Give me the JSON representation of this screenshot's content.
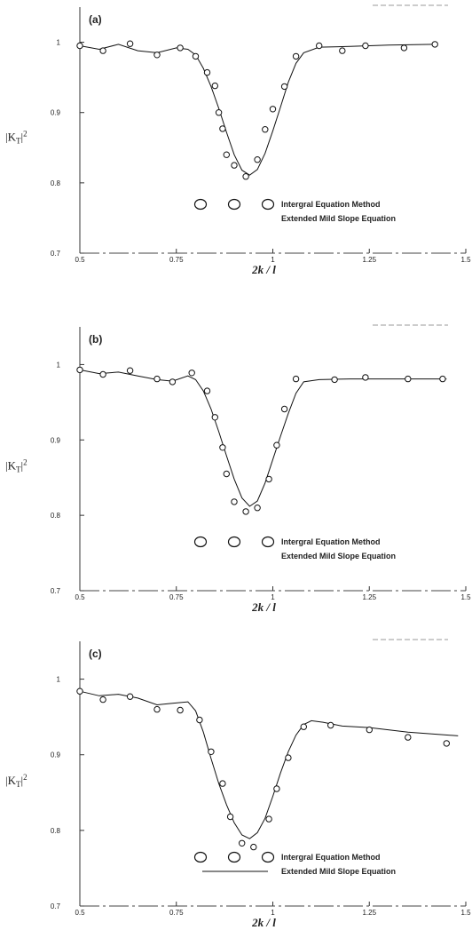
{
  "chart_data": [
    {
      "type": "line",
      "panel_label": "(a)",
      "xlabel": "2k / l",
      "ylabel": "|K",
      "ylabel_sub": "T",
      "ylabel_sup": "2",
      "xlim": [
        0.5,
        1.5
      ],
      "ylim": [
        0.7,
        1.05
      ],
      "xticks": [
        {
          "v": 0.5,
          "t": "0.5"
        },
        {
          "v": 0.75,
          "t": "0.75"
        },
        {
          "v": 1,
          "t": "1"
        },
        {
          "v": 1.25,
          "t": "1.25"
        },
        {
          "v": 1.5,
          "t": "1.5"
        }
      ],
      "yticks": [
        {
          "v": 0.7,
          "t": "0.7"
        },
        {
          "v": 0.8,
          "t": "0.8"
        },
        {
          "v": 0.9,
          "t": "0.9"
        },
        {
          "v": 1,
          "t": "1"
        }
      ],
      "legend": {
        "markers": "O O O",
        "series": [
          "Intergral Equation Method",
          "Extended Mild Slope Equation"
        ]
      },
      "series": [
        {
          "name": "Intergral Equation Method",
          "style": "circles",
          "x": [
            0.5,
            0.56,
            0.63,
            0.7,
            0.76,
            0.8,
            0.83,
            0.85,
            0.86,
            0.87,
            0.88,
            0.9,
            0.93,
            0.96,
            0.98,
            1.0,
            1.03,
            1.06,
            1.12,
            1.18,
            1.24,
            1.34,
            1.42
          ],
          "y": [
            0.995,
            0.988,
            0.998,
            0.982,
            0.992,
            0.98,
            0.957,
            0.938,
            0.9,
            0.877,
            0.84,
            0.825,
            0.809,
            0.833,
            0.876,
            0.905,
            0.937,
            0.98,
            0.995,
            0.988,
            0.995,
            0.992,
            0.997
          ]
        },
        {
          "name": "Extended Mild Slope Equation",
          "style": "line",
          "x": [
            0.5,
            0.55,
            0.6,
            0.65,
            0.7,
            0.75,
            0.78,
            0.8,
            0.82,
            0.84,
            0.86,
            0.88,
            0.9,
            0.92,
            0.94,
            0.96,
            0.98,
            1.0,
            1.02,
            1.04,
            1.06,
            1.08,
            1.12,
            1.2,
            1.3,
            1.42
          ],
          "y": [
            0.995,
            0.99,
            0.997,
            0.988,
            0.985,
            0.992,
            0.99,
            0.982,
            0.963,
            0.937,
            0.906,
            0.872,
            0.84,
            0.818,
            0.811,
            0.819,
            0.842,
            0.874,
            0.908,
            0.943,
            0.97,
            0.985,
            0.993,
            0.994,
            0.996,
            0.997
          ]
        }
      ]
    },
    {
      "type": "line",
      "panel_label": "(b)",
      "xlabel": "2k / l",
      "ylabel": "|K",
      "ylabel_sub": "T",
      "ylabel_sup": "2",
      "xlim": [
        0.5,
        1.5
      ],
      "ylim": [
        0.7,
        1.05
      ],
      "xticks": [
        {
          "v": 0.5,
          "t": "0.5"
        },
        {
          "v": 0.75,
          "t": "0.75"
        },
        {
          "v": 1,
          "t": "1"
        },
        {
          "v": 1.25,
          "t": "1.25"
        },
        {
          "v": 1.5,
          "t": "1.5"
        }
      ],
      "yticks": [
        {
          "v": 0.7,
          "t": "0.7"
        },
        {
          "v": 0.8,
          "t": "0.8"
        },
        {
          "v": 0.9,
          "t": "0.9"
        },
        {
          "v": 1,
          "t": "1"
        }
      ],
      "legend": {
        "markers": "O O O",
        "series": [
          "Intergral Equation Method",
          "Extended Mild Slope Equation"
        ]
      },
      "series": [
        {
          "name": "Intergral Equation Method",
          "style": "circles",
          "x": [
            0.5,
            0.56,
            0.63,
            0.7,
            0.74,
            0.79,
            0.83,
            0.85,
            0.87,
            0.88,
            0.9,
            0.93,
            0.96,
            0.99,
            1.01,
            1.03,
            1.06,
            1.16,
            1.24,
            1.35,
            1.44
          ],
          "y": [
            0.993,
            0.987,
            0.992,
            0.981,
            0.977,
            0.989,
            0.965,
            0.93,
            0.89,
            0.855,
            0.818,
            0.805,
            0.81,
            0.848,
            0.893,
            0.941,
            0.981,
            0.98,
            0.983,
            0.981,
            0.981
          ]
        },
        {
          "name": "Extended Mild Slope Equation",
          "style": "line",
          "x": [
            0.5,
            0.55,
            0.6,
            0.65,
            0.7,
            0.74,
            0.78,
            0.8,
            0.82,
            0.84,
            0.86,
            0.88,
            0.9,
            0.92,
            0.94,
            0.96,
            0.98,
            1.0,
            1.02,
            1.04,
            1.06,
            1.08,
            1.12,
            1.2,
            1.3,
            1.45
          ],
          "y": [
            0.993,
            0.988,
            0.99,
            0.985,
            0.98,
            0.978,
            0.985,
            0.98,
            0.965,
            0.941,
            0.911,
            0.879,
            0.848,
            0.823,
            0.812,
            0.819,
            0.843,
            0.874,
            0.905,
            0.935,
            0.962,
            0.977,
            0.98,
            0.981,
            0.981,
            0.981
          ]
        }
      ]
    },
    {
      "type": "line",
      "panel_label": "(c)",
      "xlabel": "2k / l",
      "ylabel": "|K",
      "ylabel_sub": "T",
      "ylabel_sup": "2",
      "xlim": [
        0.5,
        1.5
      ],
      "ylim": [
        0.7,
        1.05
      ],
      "xticks": [
        {
          "v": 0.5,
          "t": "0.5"
        },
        {
          "v": 0.75,
          "t": "0.75"
        },
        {
          "v": 1,
          "t": "1"
        },
        {
          "v": 1.25,
          "t": "1.25"
        },
        {
          "v": 1.5,
          "t": "1.5"
        }
      ],
      "yticks": [
        {
          "v": 0.7,
          "t": "0.7"
        },
        {
          "v": 0.8,
          "t": "0.8"
        },
        {
          "v": 0.9,
          "t": "0.9"
        },
        {
          "v": 1,
          "t": "1"
        }
      ],
      "legend": {
        "markers": "O O O",
        "series": [
          "Intergral Equation Method",
          "Extended Mild Slope Equation"
        ]
      },
      "series": [
        {
          "name": "Intergral Equation Method",
          "style": "circles",
          "x": [
            0.5,
            0.56,
            0.63,
            0.7,
            0.76,
            0.81,
            0.84,
            0.87,
            0.89,
            0.92,
            0.95,
            0.99,
            1.01,
            1.04,
            1.08,
            1.15,
            1.25,
            1.35,
            1.45
          ],
          "y": [
            0.984,
            0.973,
            0.977,
            0.96,
            0.959,
            0.946,
            0.904,
            0.862,
            0.818,
            0.783,
            0.778,
            0.815,
            0.855,
            0.896,
            0.937,
            0.939,
            0.933,
            0.923,
            0.915
          ]
        },
        {
          "name": "Extended Mild Slope Equation",
          "style": "line",
          "x": [
            0.5,
            0.55,
            0.6,
            0.65,
            0.7,
            0.74,
            0.78,
            0.8,
            0.82,
            0.84,
            0.86,
            0.88,
            0.9,
            0.92,
            0.94,
            0.96,
            0.98,
            1.0,
            1.02,
            1.04,
            1.06,
            1.08,
            1.1,
            1.13,
            1.18,
            1.25,
            1.35,
            1.48
          ],
          "y": [
            0.984,
            0.978,
            0.98,
            0.975,
            0.966,
            0.968,
            0.97,
            0.958,
            0.93,
            0.895,
            0.862,
            0.834,
            0.81,
            0.794,
            0.789,
            0.797,
            0.816,
            0.845,
            0.876,
            0.904,
            0.926,
            0.94,
            0.945,
            0.943,
            0.938,
            0.936,
            0.93,
            0.925
          ]
        }
      ]
    }
  ]
}
